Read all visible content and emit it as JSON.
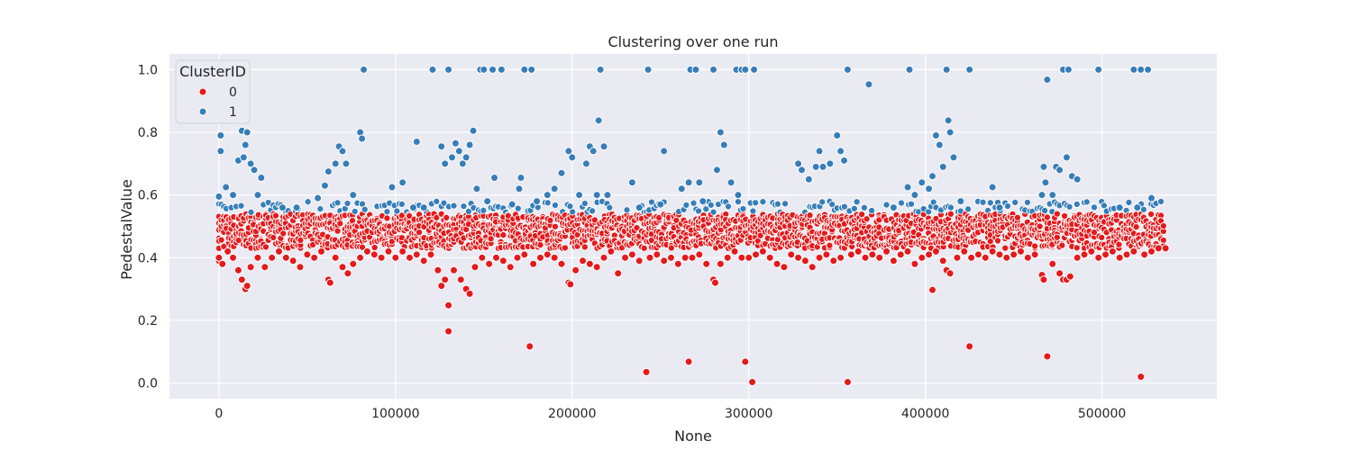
{
  "chart_data": {
    "type": "scatter",
    "title": "Clustering over one run",
    "xlabel": "None",
    "ylabel": "PedestalValue",
    "xlim": [
      -28000,
      565000
    ],
    "ylim": [
      -0.05,
      1.05
    ],
    "xticks": [
      0,
      100000,
      200000,
      300000,
      400000,
      500000
    ],
    "xtick_labels": [
      "0",
      "100000",
      "200000",
      "300000",
      "400000",
      "500000"
    ],
    "yticks": [
      0.0,
      0.2,
      0.4,
      0.6,
      0.8,
      1.0
    ],
    "ytick_labels": [
      "0.0",
      "0.2",
      "0.4",
      "0.6",
      "0.8",
      "1.0"
    ],
    "grid": true,
    "background": "#eaeaf2",
    "legend": {
      "title": "ClusterID",
      "placement": "top-left",
      "entries": [
        "0",
        "1"
      ]
    },
    "series": [
      {
        "name": "0",
        "color": "#e41a1c",
        "points": [
          [
            0,
            0.39
          ],
          [
            0,
            0.4
          ],
          [
            2000,
            0.38
          ],
          [
            5000,
            0.42
          ],
          [
            8000,
            0.4
          ],
          [
            11000,
            0.36
          ],
          [
            13000,
            0.33
          ],
          [
            15000,
            0.3
          ],
          [
            16000,
            0.31
          ],
          [
            18000,
            0.37
          ],
          [
            22000,
            0.4
          ],
          [
            26000,
            0.37
          ],
          [
            30000,
            0.4
          ],
          [
            34000,
            0.42
          ],
          [
            38000,
            0.4
          ],
          [
            42000,
            0.39
          ],
          [
            46000,
            0.37
          ],
          [
            50000,
            0.41
          ],
          [
            54000,
            0.4
          ],
          [
            58000,
            0.42
          ],
          [
            62000,
            0.33
          ],
          [
            63000,
            0.32
          ],
          [
            66000,
            0.4
          ],
          [
            70000,
            0.37
          ],
          [
            73000,
            0.35
          ],
          [
            76000,
            0.38
          ],
          [
            80000,
            0.4
          ],
          [
            84000,
            0.42
          ],
          [
            88000,
            0.41
          ],
          [
            92000,
            0.4
          ],
          [
            96000,
            0.42
          ],
          [
            100000,
            0.4
          ],
          [
            104000,
            0.42
          ],
          [
            108000,
            0.4
          ],
          [
            112000,
            0.41
          ],
          [
            116000,
            0.39
          ],
          [
            120000,
            0.41
          ],
          [
            124000,
            0.36
          ],
          [
            126000,
            0.31
          ],
          [
            128000,
            0.33
          ],
          [
            130000,
            0.248
          ],
          [
            130000,
            0.165
          ],
          [
            133000,
            0.36
          ],
          [
            137000,
            0.33
          ],
          [
            140000,
            0.3
          ],
          [
            142000,
            0.285
          ],
          [
            145000,
            0.37
          ],
          [
            149000,
            0.4
          ],
          [
            153000,
            0.38
          ],
          [
            157000,
            0.4
          ],
          [
            161000,
            0.39
          ],
          [
            165000,
            0.37
          ],
          [
            169000,
            0.4
          ],
          [
            173000,
            0.41
          ],
          [
            176000,
            0.117
          ],
          [
            178000,
            0.38
          ],
          [
            182000,
            0.4
          ],
          [
            186000,
            0.41
          ],
          [
            190000,
            0.4
          ],
          [
            194000,
            0.38
          ],
          [
            198000,
            0.32
          ],
          [
            199000,
            0.315
          ],
          [
            202000,
            0.36
          ],
          [
            206000,
            0.39
          ],
          [
            210000,
            0.38
          ],
          [
            214000,
            0.37
          ],
          [
            218000,
            0.4
          ],
          [
            222000,
            0.42
          ],
          [
            226000,
            0.35
          ],
          [
            230000,
            0.4
          ],
          [
            234000,
            0.41
          ],
          [
            238000,
            0.39
          ],
          [
            242000,
            0.035
          ],
          [
            244000,
            0.4
          ],
          [
            248000,
            0.41
          ],
          [
            252000,
            0.39
          ],
          [
            256000,
            0.4
          ],
          [
            260000,
            0.38
          ],
          [
            264000,
            0.4
          ],
          [
            266000,
            0.068
          ],
          [
            268000,
            0.4
          ],
          [
            272000,
            0.41
          ],
          [
            276000,
            0.38
          ],
          [
            280000,
            0.33
          ],
          [
            281000,
            0.32
          ],
          [
            284000,
            0.38
          ],
          [
            288000,
            0.4
          ],
          [
            292000,
            0.42
          ],
          [
            296000,
            0.4
          ],
          [
            298000,
            0.068
          ],
          [
            300000,
            0.4
          ],
          [
            302000,
            0.003
          ],
          [
            304000,
            0.41
          ],
          [
            308000,
            0.42
          ],
          [
            312000,
            0.4
          ],
          [
            316000,
            0.38
          ],
          [
            320000,
            0.37
          ],
          [
            324000,
            0.41
          ],
          [
            328000,
            0.4
          ],
          [
            332000,
            0.39
          ],
          [
            336000,
            0.37
          ],
          [
            340000,
            0.4
          ],
          [
            344000,
            0.41
          ],
          [
            348000,
            0.39
          ],
          [
            352000,
            0.4
          ],
          [
            356000,
            0.003
          ],
          [
            358000,
            0.41
          ],
          [
            362000,
            0.42
          ],
          [
            366000,
            0.4
          ],
          [
            370000,
            0.41
          ],
          [
            374000,
            0.4
          ],
          [
            378000,
            0.42
          ],
          [
            382000,
            0.39
          ],
          [
            386000,
            0.41
          ],
          [
            390000,
            0.42
          ],
          [
            394000,
            0.38
          ],
          [
            398000,
            0.4
          ],
          [
            402000,
            0.41
          ],
          [
            404000,
            0.297
          ],
          [
            406000,
            0.42
          ],
          [
            410000,
            0.39
          ],
          [
            412000,
            0.36
          ],
          [
            414000,
            0.35
          ],
          [
            418000,
            0.4
          ],
          [
            422000,
            0.42
          ],
          [
            425000,
            0.117
          ],
          [
            426000,
            0.4
          ],
          [
            430000,
            0.41
          ],
          [
            434000,
            0.4
          ],
          [
            438000,
            0.42
          ],
          [
            442000,
            0.41
          ],
          [
            446000,
            0.4
          ],
          [
            450000,
            0.41
          ],
          [
            454000,
            0.42
          ],
          [
            458000,
            0.4
          ],
          [
            462000,
            0.41
          ],
          [
            466000,
            0.345
          ],
          [
            467000,
            0.33
          ],
          [
            469000,
            0.085
          ],
          [
            472000,
            0.38
          ],
          [
            476000,
            0.35
          ],
          [
            478000,
            0.33
          ],
          [
            480000,
            0.33
          ],
          [
            482000,
            0.34
          ],
          [
            486000,
            0.4
          ],
          [
            490000,
            0.41
          ],
          [
            494000,
            0.42
          ],
          [
            498000,
            0.4
          ],
          [
            502000,
            0.41
          ],
          [
            506000,
            0.42
          ],
          [
            510000,
            0.4
          ],
          [
            514000,
            0.41
          ],
          [
            518000,
            0.42
          ],
          [
            522000,
            0.02
          ],
          [
            524000,
            0.41
          ],
          [
            528000,
            0.42
          ],
          [
            532000,
            0.43
          ],
          [
            536000,
            0.43
          ]
        ]
      },
      {
        "name": "1",
        "color": "#377eb8",
        "points": [
          [
            0,
            0.595
          ],
          [
            1000,
            0.74
          ],
          [
            1000,
            0.79
          ],
          [
            4000,
            0.625
          ],
          [
            8000,
            0.6
          ],
          [
            11000,
            0.71
          ],
          [
            13000,
            0.805
          ],
          [
            14000,
            0.72
          ],
          [
            15000,
            0.76
          ],
          [
            16000,
            0.8
          ],
          [
            18000,
            0.7
          ],
          [
            20000,
            0.68
          ],
          [
            22000,
            0.6
          ],
          [
            24000,
            0.655
          ],
          [
            36000,
            0.56
          ],
          [
            44000,
            0.56
          ],
          [
            56000,
            0.59
          ],
          [
            60000,
            0.63
          ],
          [
            62000,
            0.675
          ],
          [
            66000,
            0.7
          ],
          [
            68000,
            0.755
          ],
          [
            70000,
            0.74
          ],
          [
            72000,
            0.7
          ],
          [
            76000,
            0.6
          ],
          [
            80000,
            0.8
          ],
          [
            81000,
            0.78
          ],
          [
            82000,
            1.0
          ],
          [
            98000,
            0.625
          ],
          [
            104000,
            0.64
          ],
          [
            110000,
            0.56
          ],
          [
            112000,
            0.77
          ],
          [
            116000,
            0.56
          ],
          [
            121000,
            1.0
          ],
          [
            126000,
            0.755
          ],
          [
            128000,
            0.7
          ],
          [
            130000,
            1.0
          ],
          [
            132000,
            0.72
          ],
          [
            134000,
            0.765
          ],
          [
            136000,
            0.74
          ],
          [
            138000,
            0.7
          ],
          [
            140000,
            0.72
          ],
          [
            142000,
            0.76
          ],
          [
            144000,
            0.805
          ],
          [
            146000,
            0.62
          ],
          [
            148000,
            1.0
          ],
          [
            150000,
            1.0
          ],
          [
            152000,
            0.58
          ],
          [
            155000,
            1.0
          ],
          [
            156000,
            0.655
          ],
          [
            160000,
            1.0
          ],
          [
            166000,
            0.57
          ],
          [
            170000,
            0.62
          ],
          [
            171000,
            0.655
          ],
          [
            173000,
            1.0
          ],
          [
            177000,
            1.0
          ],
          [
            180000,
            0.58
          ],
          [
            186000,
            0.6
          ],
          [
            190000,
            0.62
          ],
          [
            194000,
            0.67
          ],
          [
            198000,
            0.74
          ],
          [
            200000,
            0.72
          ],
          [
            204000,
            0.6
          ],
          [
            208000,
            0.7
          ],
          [
            210000,
            0.755
          ],
          [
            212000,
            0.74
          ],
          [
            214000,
            0.6
          ],
          [
            215000,
            0.838
          ],
          [
            216000,
            1.0
          ],
          [
            218000,
            0.755
          ],
          [
            220000,
            0.6
          ],
          [
            234000,
            0.64
          ],
          [
            238000,
            0.56
          ],
          [
            243000,
            1.0
          ],
          [
            250000,
            0.57
          ],
          [
            252000,
            0.74
          ],
          [
            262000,
            0.62
          ],
          [
            266000,
            0.64
          ],
          [
            267000,
            1.0
          ],
          [
            270000,
            1.0
          ],
          [
            272000,
            0.64
          ],
          [
            274000,
            0.58
          ],
          [
            280000,
            1.0
          ],
          [
            282000,
            0.68
          ],
          [
            284000,
            0.8
          ],
          [
            286000,
            0.76
          ],
          [
            290000,
            0.64
          ],
          [
            293000,
            1.0
          ],
          [
            294000,
            0.6
          ],
          [
            296000,
            1.0
          ],
          [
            298000,
            1.0
          ],
          [
            303000,
            1.0
          ],
          [
            328000,
            0.7
          ],
          [
            330000,
            0.68
          ],
          [
            334000,
            0.65
          ],
          [
            338000,
            0.69
          ],
          [
            340000,
            0.74
          ],
          [
            342000,
            0.69
          ],
          [
            346000,
            0.7
          ],
          [
            350000,
            0.79
          ],
          [
            352000,
            0.74
          ],
          [
            354000,
            0.71
          ],
          [
            356000,
            1.0
          ],
          [
            368000,
            0.953
          ],
          [
            382000,
            0.56
          ],
          [
            390000,
            0.625
          ],
          [
            391000,
            1.0
          ],
          [
            394000,
            0.6
          ],
          [
            398000,
            0.64
          ],
          [
            402000,
            0.62
          ],
          [
            404000,
            0.66
          ],
          [
            406000,
            0.79
          ],
          [
            408000,
            0.76
          ],
          [
            410000,
            0.69
          ],
          [
            412000,
            1.0
          ],
          [
            413000,
            0.838
          ],
          [
            414000,
            0.8
          ],
          [
            416000,
            0.72
          ],
          [
            420000,
            0.58
          ],
          [
            425000,
            1.0
          ],
          [
            438000,
            0.625
          ],
          [
            442000,
            0.56
          ],
          [
            466000,
            0.6
          ],
          [
            467000,
            0.69
          ],
          [
            468000,
            0.64
          ],
          [
            469000,
            0.968
          ],
          [
            472000,
            0.6
          ],
          [
            474000,
            0.69
          ],
          [
            476000,
            0.68
          ],
          [
            478000,
            1.0
          ],
          [
            480000,
            0.72
          ],
          [
            481000,
            1.0
          ],
          [
            483000,
            0.66
          ],
          [
            486000,
            0.65
          ],
          [
            498000,
            1.0
          ],
          [
            510000,
            0.56
          ],
          [
            518000,
            1.0
          ],
          [
            520000,
            0.56
          ],
          [
            522000,
            1.0
          ],
          [
            526000,
            1.0
          ],
          [
            528000,
            0.59
          ]
        ]
      }
    ]
  }
}
